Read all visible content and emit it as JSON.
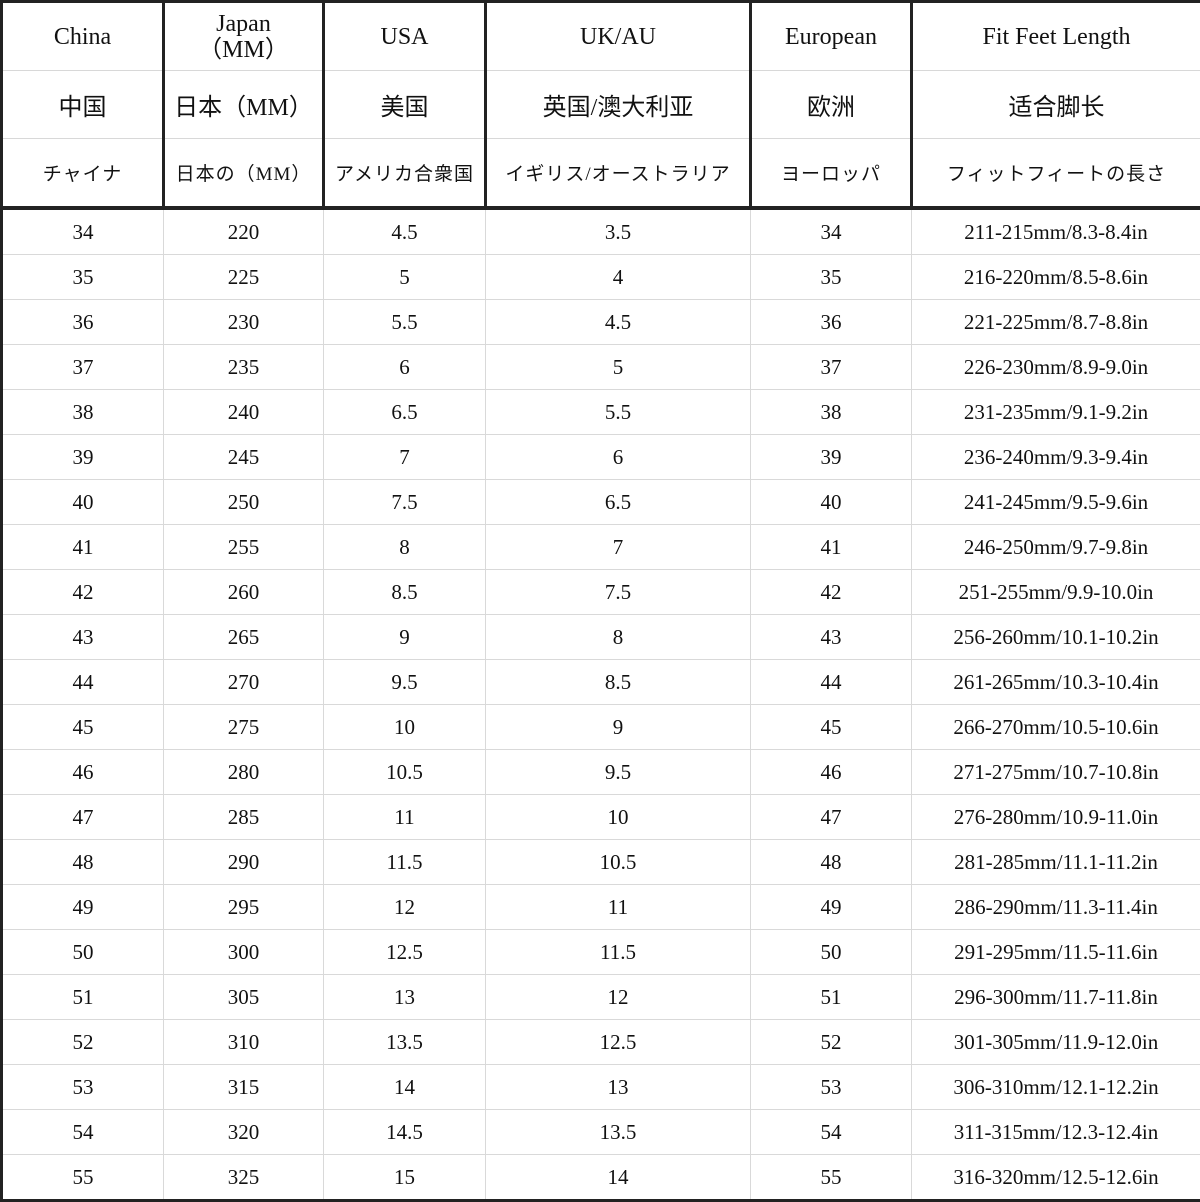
{
  "header": {
    "row_en": [
      "China",
      "Japan\n（MM）",
      "USA",
      "UK/AU",
      "European",
      "Fit Feet Length"
    ],
    "row_zh": [
      "中国",
      "日本（MM）",
      "美国",
      "英国/澳大利亚",
      "欧洲",
      "适合脚长"
    ],
    "row_ja": [
      "チャイナ",
      "日本の（MM）",
      "アメリカ合衆国",
      "イギリス/オーストラリア",
      "ヨーロッパ",
      "フィットフィートの長さ"
    ]
  },
  "rows": [
    [
      "34",
      "220",
      "4.5",
      "3.5",
      "34",
      "211-215mm/8.3-8.4in"
    ],
    [
      "35",
      "225",
      "5",
      "4",
      "35",
      "216-220mm/8.5-8.6in"
    ],
    [
      "36",
      "230",
      "5.5",
      "4.5",
      "36",
      "221-225mm/8.7-8.8in"
    ],
    [
      "37",
      "235",
      "6",
      "5",
      "37",
      "226-230mm/8.9-9.0in"
    ],
    [
      "38",
      "240",
      "6.5",
      "5.5",
      "38",
      "231-235mm/9.1-9.2in"
    ],
    [
      "39",
      "245",
      "7",
      "6",
      "39",
      "236-240mm/9.3-9.4in"
    ],
    [
      "40",
      "250",
      "7.5",
      "6.5",
      "40",
      "241-245mm/9.5-9.6in"
    ],
    [
      "41",
      "255",
      "8",
      "7",
      "41",
      "246-250mm/9.7-9.8in"
    ],
    [
      "42",
      "260",
      "8.5",
      "7.5",
      "42",
      "251-255mm/9.9-10.0in"
    ],
    [
      "43",
      "265",
      "9",
      "8",
      "43",
      "256-260mm/10.1-10.2in"
    ],
    [
      "44",
      "270",
      "9.5",
      "8.5",
      "44",
      "261-265mm/10.3-10.4in"
    ],
    [
      "45",
      "275",
      "10",
      "9",
      "45",
      "266-270mm/10.5-10.6in"
    ],
    [
      "46",
      "280",
      "10.5",
      "9.5",
      "46",
      "271-275mm/10.7-10.8in"
    ],
    [
      "47",
      "285",
      "11",
      "10",
      "47",
      "276-280mm/10.9-11.0in"
    ],
    [
      "48",
      "290",
      "11.5",
      "10.5",
      "48",
      "281-285mm/11.1-11.2in"
    ],
    [
      "49",
      "295",
      "12",
      "11",
      "49",
      "286-290mm/11.3-11.4in"
    ],
    [
      "50",
      "300",
      "12.5",
      "11.5",
      "50",
      "291-295mm/11.5-11.6in"
    ],
    [
      "51",
      "305",
      "13",
      "12",
      "51",
      "296-300mm/11.7-11.8in"
    ],
    [
      "52",
      "310",
      "13.5",
      "12.5",
      "52",
      "301-305mm/11.9-12.0in"
    ],
    [
      "53",
      "315",
      "14",
      "13",
      "53",
      "306-310mm/12.1-12.2in"
    ],
    [
      "54",
      "320",
      "14.5",
      "13.5",
      "54",
      "311-315mm/12.3-12.4in"
    ],
    [
      "55",
      "325",
      "15",
      "14",
      "55",
      "316-320mm/12.5-12.6in"
    ]
  ]
}
